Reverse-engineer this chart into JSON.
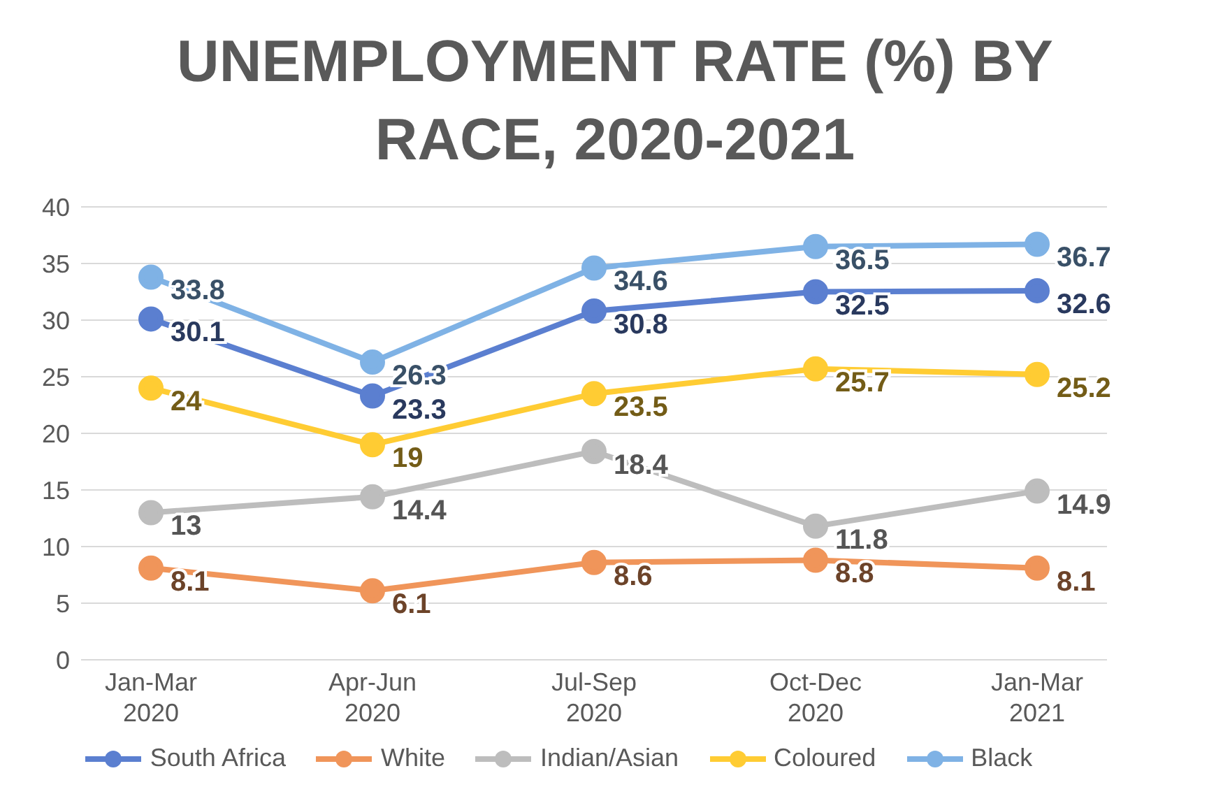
{
  "chart_data": {
    "type": "line",
    "title": "UNEMPLOYMENT RATE (%) BY RACE, 2020-2021",
    "categories": [
      "Jan-Mar 2020",
      "Apr-Jun 2020",
      "Jul-Sep 2020",
      "Oct-Dec 2020",
      "Jan-Mar 2021"
    ],
    "series": [
      {
        "name": "South Africa",
        "color": "#5b7fd0",
        "values": [
          30.1,
          23.3,
          30.8,
          32.5,
          32.6
        ]
      },
      {
        "name": "White",
        "color": "#f0955a",
        "values": [
          8.1,
          6.1,
          8.6,
          8.8,
          8.1
        ]
      },
      {
        "name": "Indian/Asian",
        "color": "#bdbdbd",
        "values": [
          13,
          14.4,
          18.4,
          11.8,
          14.9
        ]
      },
      {
        "name": "Coloured",
        "color": "#ffcc33",
        "values": [
          24,
          19,
          23.5,
          25.7,
          25.2
        ]
      },
      {
        "name": "Black",
        "color": "#7fb2e5",
        "values": [
          33.8,
          26.3,
          34.6,
          36.5,
          36.7
        ]
      }
    ],
    "ylim": [
      0,
      40
    ],
    "yticks": [
      0,
      5,
      10,
      15,
      20,
      25,
      30,
      35,
      40
    ],
    "grid": "y",
    "legend": "bottom",
    "marker": "circle",
    "line_style": "solid",
    "data_labels": true
  }
}
